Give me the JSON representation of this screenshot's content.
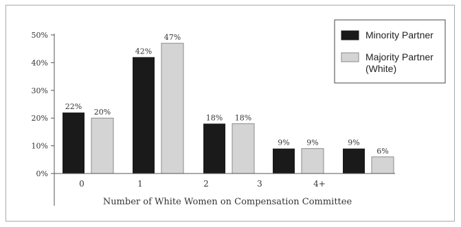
{
  "chart_data": {
    "type": "bar",
    "title": "",
    "xlabel": "Number of White Women on Compensation Committee",
    "ylabel": "",
    "ylim": [
      0,
      50
    ],
    "ytick_labels": [
      "0%",
      "10%",
      "20%",
      "30%",
      "40%",
      "50%"
    ],
    "yticks": [
      0,
      10,
      20,
      30,
      40,
      50
    ],
    "categories": [
      "0",
      "1",
      "2",
      "3",
      "4+"
    ],
    "grid": false,
    "legend": {
      "placement": "top-right",
      "entries": [
        {
          "name": "Minority Partner",
          "color": "#1a1a1a"
        },
        {
          "name": "Majority Partner",
          "name_line2": "(White)",
          "color": "#d4d4d4"
        }
      ]
    },
    "bar_groups": [
      {
        "minority": 22,
        "majority": 20,
        "minority_label": "22%",
        "majority_label": "20%"
      },
      {
        "minority": 42,
        "majority": 47,
        "minority_label": "42%",
        "majority_label": "47%"
      },
      {
        "minority": 18,
        "majority": 18,
        "minority_label": "18%",
        "majority_label": "18%"
      },
      {
        "minority": 9,
        "majority": 9,
        "minority_label": "9%",
        "majority_label": "9%"
      },
      {
        "minority": 9,
        "majority": 6,
        "minority_label": "9%",
        "majority_label": "6%"
      }
    ],
    "series": [
      {
        "name": "Minority Partner",
        "values": [
          22,
          42,
          18,
          9,
          9
        ]
      },
      {
        "name": "Majority Partner (White)",
        "values": [
          20,
          47,
          18,
          9,
          6
        ]
      }
    ],
    "colors": {
      "minority": "#1a1a1a",
      "majority": "#d4d4d4",
      "majority_stroke": "#8a8a8a",
      "axis": "#555555"
    }
  }
}
